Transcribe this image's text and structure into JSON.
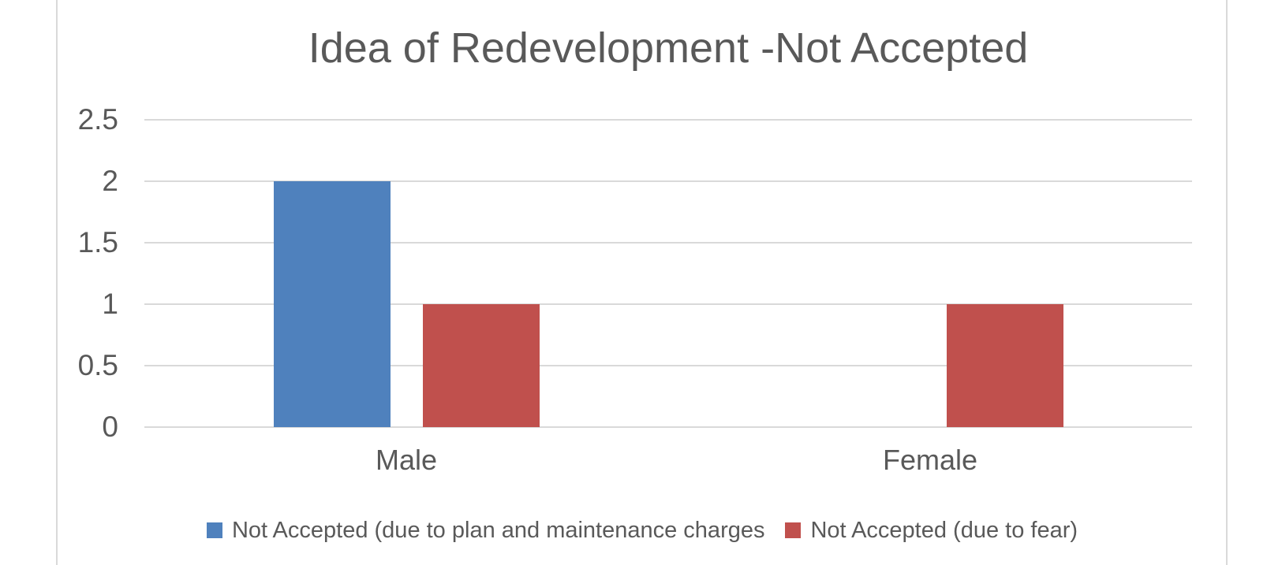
{
  "chart_data": {
    "type": "bar",
    "title": "Idea of Redevelopment -Not Accepted",
    "categories": [
      "Male",
      "Female"
    ],
    "series": [
      {
        "name": "Not Accepted (due to plan and maintenance charges",
        "color": "#4F81BD",
        "values": [
          2,
          0
        ]
      },
      {
        "name": "Not Accepted (due to fear)",
        "color": "#C0504D",
        "values": [
          1,
          1
        ]
      }
    ],
    "y_ticks": [
      0,
      0.5,
      1,
      1.5,
      2,
      2.5
    ],
    "ylim": [
      0,
      2.5
    ],
    "xlabel": "",
    "ylabel": "",
    "grid": true,
    "legend_position": "bottom"
  },
  "styles": {
    "text_color": "#595959",
    "gridline_color": "#D9D9D9",
    "frame_color": "#D9D9D9",
    "background": "#FFFFFF"
  }
}
